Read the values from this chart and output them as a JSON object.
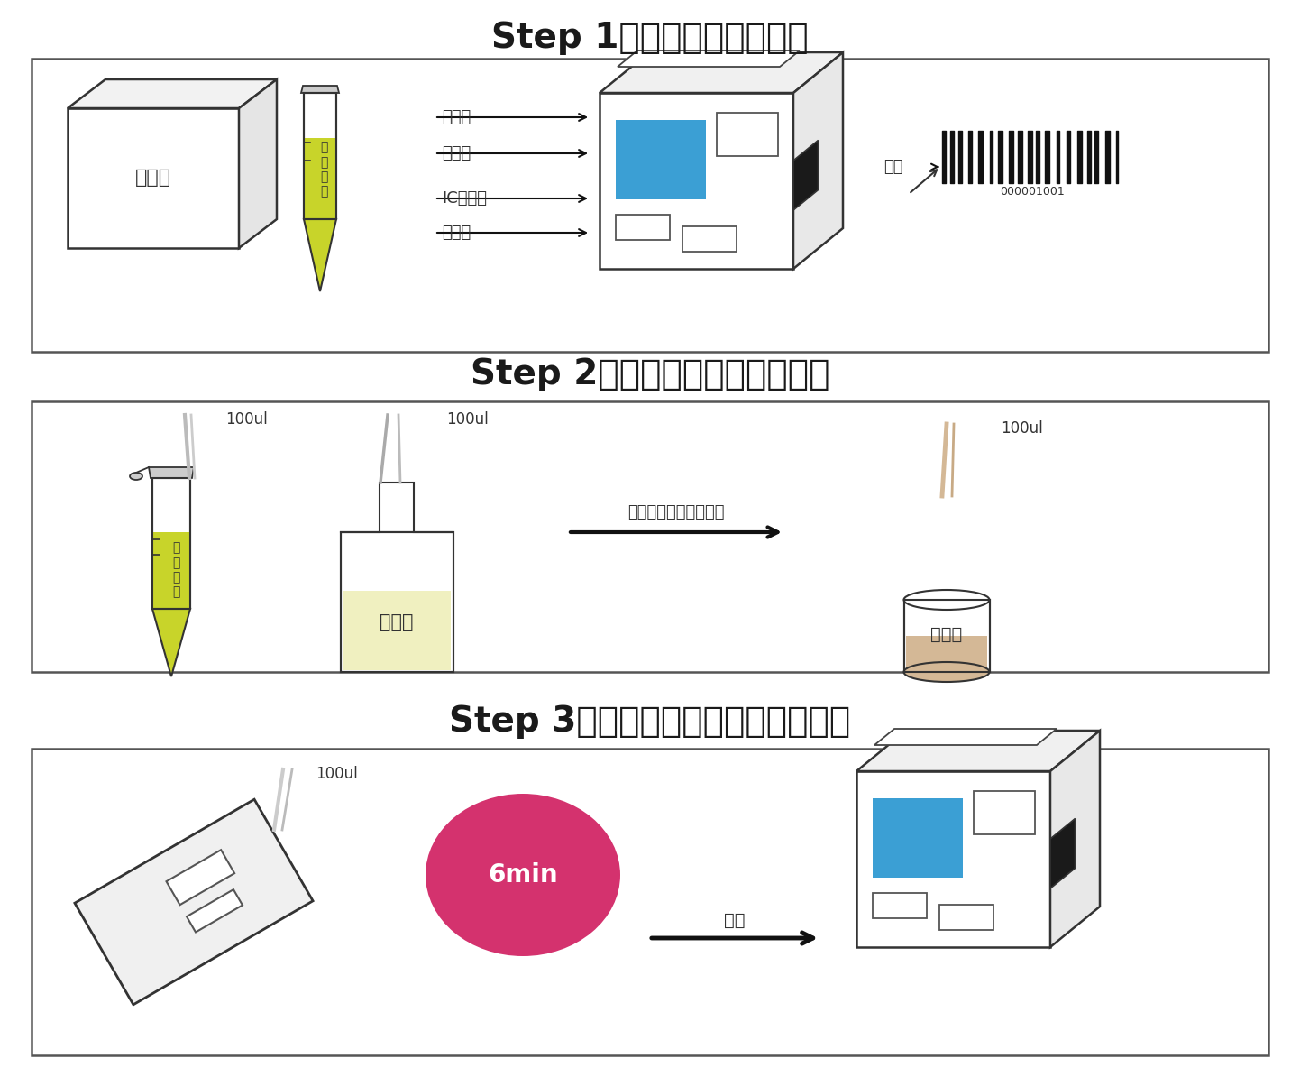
{
  "title1": "Step 1：回温、开机、扫码",
  "title2": "Step 2：取样、加稀释液，混匀",
  "title3": "Step 3：加样，读数，打印检测报告",
  "label_reagent": "试剖盒",
  "label_sample": "待\n检\n样\n品",
  "label_printer": "打印机",
  "label_screen": "显示屏",
  "label_ic": "IC卡插口",
  "label_insert": "插卡口",
  "label_scan": "扫码",
  "label_barcode_num": "000001001",
  "label_dilute": "稀释液",
  "label_mix": "加热样品杯，吸打混匀",
  "label_cup": "样品杯",
  "label_100ul": "100ul",
  "label_6min": "6min",
  "label_read": "读数",
  "bg_color": "#ffffff",
  "border_color": "#555555",
  "blue_color": "#3b9fd4",
  "green_yellow": "#c8d42a",
  "pink_color": "#d4326e",
  "tan_color": "#d4b896",
  "light_yellow": "#f0f0c0",
  "arrow_color": "#111111",
  "title_fontsize": 26,
  "label_fontsize": 13,
  "small_fontsize": 11
}
